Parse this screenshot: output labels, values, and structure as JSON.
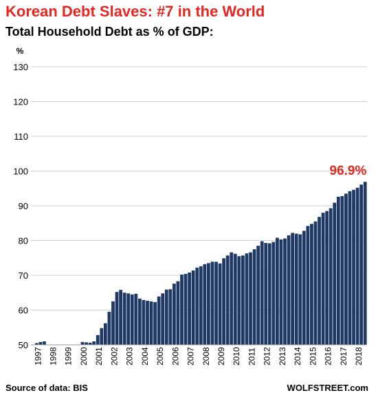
{
  "header": {
    "title": "Korean Debt Slaves: #7 in the World",
    "subtitle": "Total Household Debt as % of GDP:"
  },
  "footer": {
    "source": "Source of data: BIS",
    "brand": "WOLFSTREET.com"
  },
  "colors": {
    "title": "#e8251e",
    "bar": "#1f3864",
    "grid": "#cfcfcf",
    "highlight": "#e8251e"
  },
  "chart_data": {
    "type": "bar",
    "ylabel": "%",
    "ylim": [
      50,
      130
    ],
    "yticks": [
      50,
      60,
      70,
      80,
      90,
      100,
      110,
      120,
      130
    ],
    "grid": true,
    "year_labels": [
      "1997",
      "1998",
      "1999",
      "2000",
      "2001",
      "2002",
      "2003",
      "2004",
      "2005",
      "2006",
      "2007",
      "2008",
      "2009",
      "2010",
      "2011",
      "2012",
      "2013",
      "2014",
      "2015",
      "2016",
      "2017",
      "2018"
    ],
    "quarters_per_year": 4,
    "values": [
      null,
      50.5,
      50.8,
      51.0,
      null,
      null,
      null,
      null,
      null,
      null,
      null,
      null,
      null,
      50.8,
      50.7,
      50.6,
      51.0,
      52.8,
      54.8,
      56.2,
      59.5,
      62.5,
      65.2,
      65.8,
      65.0,
      64.8,
      64.5,
      64.7,
      63.3,
      62.9,
      62.7,
      62.5,
      62.3,
      63.9,
      64.8,
      65.9,
      66.0,
      67.6,
      68.3,
      70.2,
      70.4,
      70.8,
      71.4,
      72.2,
      72.6,
      73.2,
      73.5,
      73.9,
      73.9,
      73.4,
      74.9,
      75.7,
      76.6,
      76.2,
      75.5,
      75.7,
      76.3,
      76.6,
      77.5,
      78.5,
      79.8,
      79.3,
      79.2,
      79.6,
      80.8,
      80.3,
      80.6,
      81.5,
      82.2,
      82.0,
      81.8,
      82.8,
      84.2,
      84.8,
      85.5,
      86.8,
      88.0,
      88.5,
      89.3,
      90.9,
      92.6,
      92.8,
      93.5,
      94.2,
      94.6,
      95.2,
      96.1,
      96.9
    ],
    "annotation": "96.9%"
  }
}
